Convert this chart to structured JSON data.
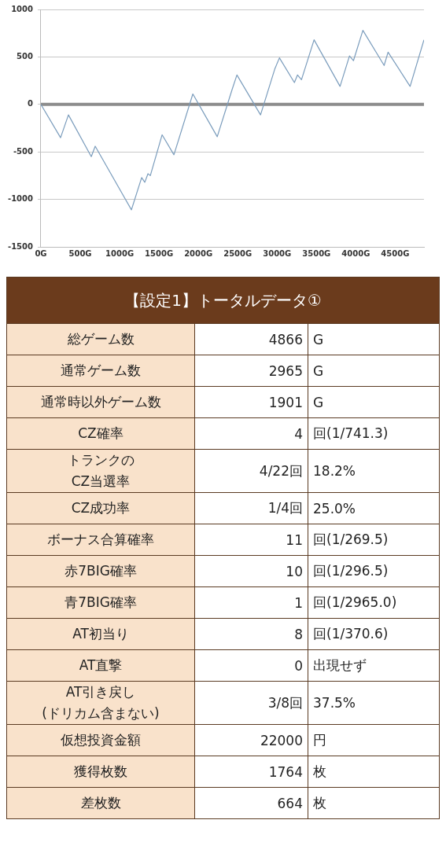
{
  "chart_data": [
    {
      "type": "line",
      "x": [
        0,
        250,
        350,
        640,
        690,
        1150,
        1280,
        1320,
        1360,
        1390,
        1540,
        1690,
        1930,
        2240,
        2430,
        2490,
        2790,
        2970,
        3030,
        3220,
        3260,
        3310,
        3470,
        3800,
        3920,
        3970,
        4090,
        4360,
        4410,
        4690,
        4866
      ],
      "values": [
        0,
        -350,
        -110,
        -550,
        -440,
        -1110,
        -770,
        -820,
        -730,
        -750,
        -320,
        -530,
        110,
        -340,
        160,
        310,
        -110,
        370,
        490,
        230,
        310,
        260,
        680,
        190,
        510,
        460,
        780,
        410,
        550,
        190,
        680
      ],
      "color": "#7a9cbc",
      "marker": "none",
      "line_style": "solid",
      "legend": false,
      "grid": "y",
      "xlim": [
        0,
        4866
      ],
      "xticks": [
        {
          "value": 0,
          "label": "0G"
        },
        {
          "value": 500,
          "label": "500G"
        },
        {
          "value": 1000,
          "label": "1000G"
        },
        {
          "value": 1500,
          "label": "1500G"
        },
        {
          "value": 2000,
          "label": "2000G"
        },
        {
          "value": 2500,
          "label": "2500G"
        },
        {
          "value": 3000,
          "label": "3000G"
        },
        {
          "value": 3500,
          "label": "3500G"
        },
        {
          "value": 4000,
          "label": "4000G"
        },
        {
          "value": 4500,
          "label": "4500G"
        }
      ],
      "ylim": [
        -1500,
        1000
      ],
      "yticks": [
        -1500,
        -1000,
        -500,
        0,
        500,
        1000
      ],
      "ref_lines": [
        {
          "axis": "y",
          "value": 0,
          "color": "#8c8c8c"
        }
      ]
    },
    {
      "type": "other",
      "title": "【設定1】トータルデータ①",
      "y_categories": [
        "総ゲーム数",
        "通常ゲーム数",
        "通常時以外ゲーム数",
        "CZ確率",
        "トランクの\nCZ当選率",
        "CZ成功率",
        "ボーナス合算確率",
        "赤7BIG確率",
        "青7BIG確率",
        "AT初当り",
        "AT直撃",
        "AT引き戻し\n(ドリカム含まない)",
        "仮想投資金額",
        "獲得枚数",
        "差枚数"
      ],
      "cell_labels": [
        [
          "4866",
          "G"
        ],
        [
          "2965",
          "G"
        ],
        [
          "1901",
          "G"
        ],
        [
          "4",
          "回(1/741.3)"
        ],
        [
          "4/22回",
          "18.2%"
        ],
        [
          "1/4回",
          "25.0%"
        ],
        [
          "11",
          "回(1/269.5)"
        ],
        [
          "10",
          "回(1/296.5)"
        ],
        [
          "1",
          "回(1/2965.0)"
        ],
        [
          "8",
          "回(1/370.6)"
        ],
        [
          "0",
          "出現せず"
        ],
        [
          "3/8回",
          "37.5%"
        ],
        [
          "22000",
          "円"
        ],
        [
          "1764",
          "枚"
        ],
        [
          "664",
          "枚"
        ]
      ]
    }
  ]
}
